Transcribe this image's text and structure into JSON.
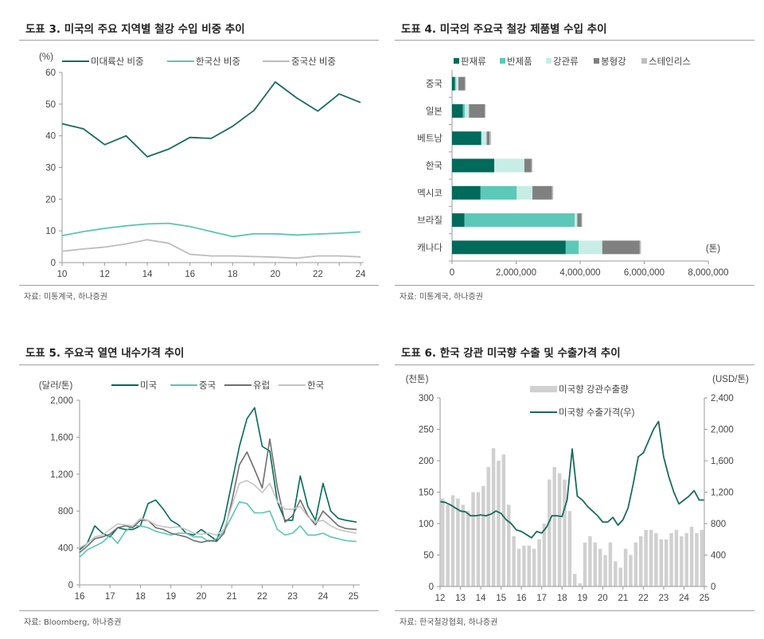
{
  "chart_data": [
    {
      "id": "fig3",
      "type": "line",
      "title": "도표 3. 미국의 주요 지역별 철강 수입 비중 추이",
      "ylabel": "(%)",
      "source": "자료: 미통계국, 하나증권",
      "ylim": [
        0,
        60
      ],
      "yticks": [
        0,
        10,
        20,
        30,
        40,
        50,
        60
      ],
      "xlim": [
        10,
        24
      ],
      "xticks": [
        10,
        12,
        14,
        16,
        18,
        20,
        22,
        24
      ],
      "grid": false,
      "legend": "top",
      "x": [
        10,
        11,
        12,
        13,
        14,
        15,
        16,
        17,
        18,
        19,
        20,
        21,
        22,
        23,
        24
      ],
      "series": [
        {
          "name": "미대륙산 비중",
          "color": "#1a6b5e",
          "values": [
            43.8,
            42.2,
            37.2,
            40,
            33.4,
            35.8,
            39.5,
            39.2,
            43,
            48,
            57,
            52,
            47.8,
            53.2,
            50.5
          ]
        },
        {
          "name": "한국산 비중",
          "color": "#5cc4b4",
          "values": [
            8.5,
            9.8,
            10.8,
            11.6,
            12.2,
            12.4,
            11.4,
            9.8,
            8.2,
            9.1,
            9.1,
            8.7,
            9.0,
            9.3,
            9.7
          ]
        },
        {
          "name": "중국산 비중",
          "color": "#bdbdbd",
          "values": [
            3.6,
            4.3,
            4.9,
            5.9,
            7.2,
            6.1,
            2.6,
            2.1,
            2.1,
            1.9,
            1.7,
            1.4,
            2.1,
            2.1,
            1.8
          ]
        }
      ]
    },
    {
      "id": "fig4",
      "type": "bar",
      "orientation": "horizontal-stacked",
      "title": "도표 4. 미국의 주요국 철강 제품별 수입 추이",
      "unit": "(톤)",
      "source": "자료: 미통계국, 하나증권",
      "xlim": [
        0,
        8000000
      ],
      "xticks": [
        0,
        2000000,
        4000000,
        6000000,
        8000000
      ],
      "xtick_labels": [
        "0",
        "2,000,000",
        "4,000,000",
        "6,000,000",
        "8,000,000"
      ],
      "legend": "top",
      "categories": [
        "중국",
        "일본",
        "베트남",
        "한국",
        "멕시코",
        "브라질",
        "캐나다"
      ],
      "series": [
        {
          "name": "판재류",
          "color": "#006a5b",
          "values": [
            90000,
            340000,
            910000,
            1320000,
            890000,
            390000,
            3550000
          ]
        },
        {
          "name": "반제품",
          "color": "#5cc8b8",
          "values": [
            30000,
            60000,
            10000,
            0,
            1130000,
            3440000,
            400000
          ]
        },
        {
          "name": "강관류",
          "color": "#c8ece6",
          "values": [
            80000,
            130000,
            160000,
            940000,
            490000,
            80000,
            740000
          ]
        },
        {
          "name": "봉형강",
          "color": "#808080",
          "values": [
            200000,
            490000,
            90000,
            220000,
            610000,
            130000,
            1170000
          ]
        },
        {
          "name": "스테인리스",
          "color": "#bfbfbf",
          "values": [
            30000,
            30000,
            50000,
            30000,
            40000,
            25000,
            40000
          ]
        }
      ]
    },
    {
      "id": "fig5",
      "type": "line",
      "title": "도표 5. 주요국 열연 내수가격 추이",
      "ylabel": "(달러/톤)",
      "source": "자료: Bloomberg, 하나증권",
      "ylim": [
        0,
        2000
      ],
      "yticks": [
        0,
        400,
        800,
        1200,
        1600,
        2000
      ],
      "ytick_labels": [
        "0",
        "400",
        "800",
        "1,200",
        "1,600",
        "2,000"
      ],
      "xlim": [
        16,
        25.1
      ],
      "xticks": [
        16,
        17,
        18,
        19,
        20,
        21,
        22,
        23,
        24,
        25
      ],
      "grid": false,
      "legend": "top",
      "x": [
        16,
        16.25,
        16.5,
        16.75,
        17,
        17.25,
        17.5,
        17.75,
        18,
        18.25,
        18.5,
        18.75,
        19,
        19.25,
        19.5,
        19.75,
        20,
        20.25,
        20.5,
        20.75,
        21,
        21.25,
        21.5,
        21.75,
        22,
        22.25,
        22.5,
        22.75,
        23,
        23.25,
        23.5,
        23.75,
        24,
        24.25,
        24.5,
        24.75,
        25.1
      ],
      "series": [
        {
          "name": "미국",
          "color": "#006a5b",
          "values": [
            380,
            450,
            640,
            560,
            520,
            620,
            600,
            600,
            640,
            880,
            920,
            820,
            700,
            650,
            560,
            540,
            600,
            540,
            480,
            700,
            1100,
            1500,
            1800,
            1920,
            1500,
            1450,
            900,
            700,
            700,
            1180,
            850,
            700,
            1100,
            800,
            720,
            700,
            680
          ]
        },
        {
          "name": "중국",
          "color": "#5cc4b4",
          "values": [
            300,
            380,
            420,
            460,
            540,
            450,
            580,
            640,
            640,
            620,
            580,
            560,
            540,
            560,
            560,
            520,
            520,
            470,
            500,
            580,
            740,
            900,
            880,
            780,
            780,
            800,
            600,
            540,
            560,
            640,
            540,
            540,
            560,
            520,
            500,
            480,
            470
          ]
        },
        {
          "name": "유럽",
          "color": "#6e6e6e",
          "values": [
            350,
            420,
            500,
            520,
            550,
            620,
            640,
            620,
            700,
            700,
            620,
            600,
            560,
            540,
            520,
            480,
            460,
            480,
            470,
            560,
            900,
            1300,
            1440,
            1250,
            1050,
            1580,
            1050,
            680,
            750,
            920,
            750,
            650,
            800,
            720,
            640,
            610,
            600
          ]
        },
        {
          "name": "한국",
          "color": "#c4c4c4",
          "values": [
            400,
            450,
            520,
            540,
            600,
            660,
            650,
            640,
            720,
            700,
            650,
            630,
            620,
            630,
            600,
            560,
            550,
            560,
            540,
            600,
            850,
            1100,
            1130,
            1080,
            1000,
            1100,
            900,
            820,
            820,
            850,
            740,
            680,
            700,
            640,
            600,
            580,
            560
          ]
        }
      ]
    },
    {
      "id": "fig6",
      "type": "bar+line",
      "title": "도표 6. 한국 강관 미국향 수출 및 수출가격 추이",
      "ylabel_left": "(천톤)",
      "ylabel_right": "(USD/톤)",
      "source": "자료: 한국철강협회, 하나증권",
      "ylim_left": [
        0,
        300
      ],
      "yticks_left": [
        0,
        50,
        100,
        150,
        200,
        250,
        300
      ],
      "ylim_right": [
        0,
        2400
      ],
      "yticks_right": [
        0,
        400,
        800,
        1200,
        1600,
        2000,
        2400
      ],
      "ytick_labels_right": [
        "0",
        "400",
        "800",
        "1,200",
        "1,600",
        "2,000",
        "2,400"
      ],
      "xlim": [
        12,
        25
      ],
      "xticks": [
        12,
        13,
        14,
        15,
        16,
        17,
        18,
        19,
        20,
        21,
        22,
        23,
        24,
        25
      ],
      "legend": "top",
      "bar_series": {
        "name": "미국향 강관수출량",
        "color": "#d0d0d0",
        "x_start": 12,
        "step": 0.25,
        "values": [
          140,
          130,
          145,
          140,
          130,
          120,
          150,
          150,
          160,
          190,
          220,
          200,
          210,
          130,
          80,
          60,
          65,
          65,
          60,
          75,
          100,
          170,
          190,
          180,
          170,
          120,
          20,
          5,
          70,
          80,
          70,
          60,
          50,
          70,
          40,
          30,
          60,
          50,
          70,
          80,
          90,
          90,
          85,
          75,
          75,
          85,
          90,
          80,
          85,
          95,
          85,
          90
        ]
      },
      "line_series": {
        "name": "미국향 수출가격(우)",
        "color": "#1a6b5e",
        "x_start": 12,
        "step": 0.25,
        "values": [
          1080,
          1070,
          1040,
          1000,
          960,
          950,
          900,
          900,
          910,
          900,
          920,
          960,
          930,
          850,
          800,
          720,
          700,
          660,
          620,
          700,
          680,
          760,
          900,
          900,
          890,
          1100,
          1750,
          1150,
          1100,
          1020,
          960,
          900,
          820,
          820,
          880,
          780,
          850,
          1000,
          1300,
          1650,
          1700,
          1850,
          2000,
          2100,
          1650,
          1400,
          1200,
          1050,
          1100,
          1150,
          1220,
          1100,
          1100
        ]
      }
    }
  ]
}
